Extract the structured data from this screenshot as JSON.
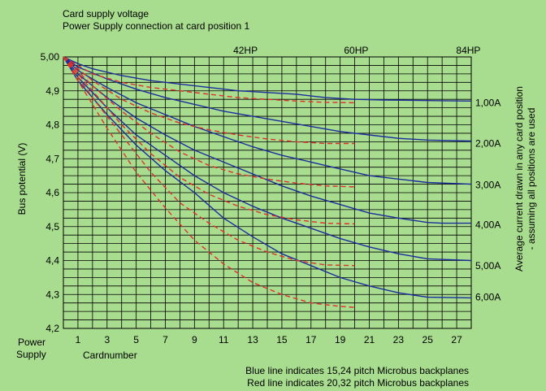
{
  "chart_data": {
    "type": "line",
    "title_line1": "Card supply voltage",
    "title_line2": "Power Supply connection at card position 1",
    "xlabel": "Cardnumber",
    "x_start_label": "Power",
    "x_start_label2": "Supply",
    "ylabel": "Bus potential (V)",
    "ylabel_right_line1": "Average current drawn in any card position",
    "ylabel_right_line2": "- assuming all positions are used",
    "xlim": [
      0,
      28
    ],
    "ylim": [
      4.2,
      5.0
    ],
    "x_ticks": [
      {
        "value": 1,
        "label": "1"
      },
      {
        "value": 3,
        "label": "3"
      },
      {
        "value": 5,
        "label": "5"
      },
      {
        "value": 7,
        "label": "7"
      },
      {
        "value": 9,
        "label": "9"
      },
      {
        "value": 11,
        "label": "11"
      },
      {
        "value": 13,
        "label": "13"
      },
      {
        "value": 15,
        "label": "15"
      },
      {
        "value": 17,
        "label": "17"
      },
      {
        "value": 19,
        "label": "19"
      },
      {
        "value": 21,
        "label": "21"
      },
      {
        "value": 23,
        "label": "23"
      },
      {
        "value": 25,
        "label": "25"
      },
      {
        "value": 27,
        "label": "27"
      }
    ],
    "y_ticks": [
      {
        "value": 5.0,
        "label": "5,00"
      },
      {
        "value": 4.9,
        "label": "4,9"
      },
      {
        "value": 4.8,
        "label": "4,8"
      },
      {
        "value": 4.7,
        "label": "4,7"
      },
      {
        "value": 4.6,
        "label": "4,6"
      },
      {
        "value": 4.5,
        "label": "4,5"
      },
      {
        "value": 4.4,
        "label": "4,4"
      },
      {
        "value": 4.3,
        "label": "4,3"
      },
      {
        "value": 4.2,
        "label": "4,2"
      }
    ],
    "top_markers": [
      {
        "x": 12.5,
        "label": "42HP"
      },
      {
        "x": 20.1,
        "label": "60HP"
      },
      {
        "x": 27.8,
        "label": "84HP"
      }
    ],
    "current_labels": [
      {
        "y": 4.865,
        "label": "1,00A"
      },
      {
        "y": 4.745,
        "label": "2,00A"
      },
      {
        "y": 4.623,
        "label": "3,00A"
      },
      {
        "y": 4.505,
        "label": "4,00A"
      },
      {
        "y": 4.385,
        "label": "5,00A"
      },
      {
        "y": 4.292,
        "label": "6,00A"
      }
    ],
    "grid": true,
    "legend_line1": "Blue line indicates 15,24 pitch Microbus backplanes",
    "legend_line2": "Red line indicates 20,32 pitch Microbus backplanes",
    "colors": {
      "blue": "#1c2d9c",
      "red": "#e0302a",
      "grid": "#000000",
      "background": "#a8dc8e"
    },
    "series": [
      {
        "color": "blue",
        "style": "solid",
        "points": [
          [
            0,
            5.0
          ],
          [
            1,
            4.98
          ],
          [
            2,
            4.965
          ],
          [
            4,
            4.945
          ],
          [
            6,
            4.93
          ],
          [
            8,
            4.92
          ],
          [
            10,
            4.91
          ],
          [
            12,
            4.9
          ],
          [
            14,
            4.895
          ],
          [
            16,
            4.89
          ],
          [
            18,
            4.88
          ],
          [
            20,
            4.875
          ],
          [
            22,
            4.873
          ],
          [
            24,
            4.872
          ],
          [
            26,
            4.871
          ],
          [
            28,
            4.87
          ]
        ]
      },
      {
        "color": "blue",
        "style": "solid",
        "points": [
          [
            0,
            5.0
          ],
          [
            1,
            4.97
          ],
          [
            3,
            4.935
          ],
          [
            5,
            4.905
          ],
          [
            7,
            4.88
          ],
          [
            9,
            4.86
          ],
          [
            11,
            4.84
          ],
          [
            13,
            4.825
          ],
          [
            15,
            4.81
          ],
          [
            17,
            4.795
          ],
          [
            19,
            4.78
          ],
          [
            21,
            4.77
          ],
          [
            23,
            4.76
          ],
          [
            25,
            4.755
          ],
          [
            28,
            4.752
          ]
        ]
      },
      {
        "color": "blue",
        "style": "solid",
        "points": [
          [
            0,
            5.0
          ],
          [
            1,
            4.96
          ],
          [
            3,
            4.91
          ],
          [
            5,
            4.865
          ],
          [
            7,
            4.83
          ],
          [
            9,
            4.795
          ],
          [
            11,
            4.765
          ],
          [
            13,
            4.735
          ],
          [
            15,
            4.71
          ],
          [
            17,
            4.69
          ],
          [
            19,
            4.67
          ],
          [
            21,
            4.65
          ],
          [
            23,
            4.64
          ],
          [
            25,
            4.63
          ],
          [
            28,
            4.625
          ]
        ]
      },
      {
        "color": "blue",
        "style": "solid",
        "points": [
          [
            0,
            5.0
          ],
          [
            1,
            4.95
          ],
          [
            3,
            4.88
          ],
          [
            5,
            4.82
          ],
          [
            7,
            4.77
          ],
          [
            9,
            4.725
          ],
          [
            11,
            4.69
          ],
          [
            13,
            4.655
          ],
          [
            15,
            4.62
          ],
          [
            17,
            4.59
          ],
          [
            19,
            4.565
          ],
          [
            21,
            4.54
          ],
          [
            23,
            4.525
          ],
          [
            25,
            4.512
          ],
          [
            26,
            4.51
          ],
          [
            28,
            4.51
          ]
        ]
      },
      {
        "color": "blue",
        "style": "solid",
        "points": [
          [
            0,
            5.0
          ],
          [
            1,
            4.94
          ],
          [
            3,
            4.85
          ],
          [
            5,
            4.77
          ],
          [
            7,
            4.71
          ],
          [
            9,
            4.65
          ],
          [
            11,
            4.6
          ],
          [
            13,
            4.56
          ],
          [
            15,
            4.525
          ],
          [
            17,
            4.495
          ],
          [
            19,
            4.465
          ],
          [
            21,
            4.44
          ],
          [
            23,
            4.42
          ],
          [
            25,
            4.405
          ],
          [
            28,
            4.4
          ]
        ]
      },
      {
        "color": "blue",
        "style": "solid",
        "points": [
          [
            0,
            5.0
          ],
          [
            1,
            4.93
          ],
          [
            3,
            4.83
          ],
          [
            5,
            4.74
          ],
          [
            7,
            4.665
          ],
          [
            9,
            4.6
          ],
          [
            11,
            4.525
          ],
          [
            13,
            4.47
          ],
          [
            15,
            4.42
          ],
          [
            17,
            4.385
          ],
          [
            19,
            4.35
          ],
          [
            21,
            4.325
          ],
          [
            23,
            4.305
          ],
          [
            25,
            4.292
          ],
          [
            28,
            4.29
          ]
        ]
      },
      {
        "color": "red",
        "style": "dashed",
        "points": [
          [
            0,
            5.0
          ],
          [
            2,
            4.95
          ],
          [
            4,
            4.925
          ],
          [
            6,
            4.91
          ],
          [
            8,
            4.9
          ],
          [
            10,
            4.89
          ],
          [
            12,
            4.88
          ],
          [
            14,
            4.875
          ],
          [
            16,
            4.87
          ],
          [
            18,
            4.866
          ],
          [
            20,
            4.865
          ]
        ]
      },
      {
        "color": "red",
        "style": "dashed",
        "points": [
          [
            0,
            5.0
          ],
          [
            2,
            4.93
          ],
          [
            4,
            4.875
          ],
          [
            6,
            4.835
          ],
          [
            8,
            4.805
          ],
          [
            10,
            4.785
          ],
          [
            12,
            4.77
          ],
          [
            14,
            4.758
          ],
          [
            16,
            4.75
          ],
          [
            18,
            4.745
          ],
          [
            20,
            4.745
          ]
        ]
      },
      {
        "color": "red",
        "style": "dashed",
        "points": [
          [
            0,
            5.0
          ],
          [
            2,
            4.915
          ],
          [
            4,
            4.84
          ],
          [
            6,
            4.775
          ],
          [
            8,
            4.72
          ],
          [
            10,
            4.68
          ],
          [
            12,
            4.655
          ],
          [
            14,
            4.64
          ],
          [
            16,
            4.628
          ],
          [
            18,
            4.62
          ],
          [
            20,
            4.617
          ]
        ]
      },
      {
        "color": "red",
        "style": "dashed",
        "points": [
          [
            0,
            5.0
          ],
          [
            2,
            4.9
          ],
          [
            4,
            4.8
          ],
          [
            6,
            4.715
          ],
          [
            8,
            4.645
          ],
          [
            10,
            4.595
          ],
          [
            12,
            4.56
          ],
          [
            14,
            4.535
          ],
          [
            16,
            4.52
          ],
          [
            18,
            4.51
          ],
          [
            20,
            4.508
          ]
        ]
      },
      {
        "color": "red",
        "style": "dashed",
        "points": [
          [
            0,
            5.0
          ],
          [
            2,
            4.88
          ],
          [
            4,
            4.77
          ],
          [
            6,
            4.66
          ],
          [
            8,
            4.57
          ],
          [
            10,
            4.51
          ],
          [
            12,
            4.46
          ],
          [
            14,
            4.425
          ],
          [
            16,
            4.4
          ],
          [
            18,
            4.387
          ],
          [
            20,
            4.385
          ]
        ]
      },
      {
        "color": "red",
        "style": "dashed",
        "points": [
          [
            0,
            5.0
          ],
          [
            1,
            4.93
          ],
          [
            3,
            4.79
          ],
          [
            5,
            4.66
          ],
          [
            7,
            4.555
          ],
          [
            9,
            4.46
          ],
          [
            11,
            4.39
          ],
          [
            13,
            4.335
          ],
          [
            15,
            4.3
          ],
          [
            17,
            4.275
          ],
          [
            19,
            4.265
          ],
          [
            20,
            4.262
          ]
        ]
      }
    ]
  }
}
